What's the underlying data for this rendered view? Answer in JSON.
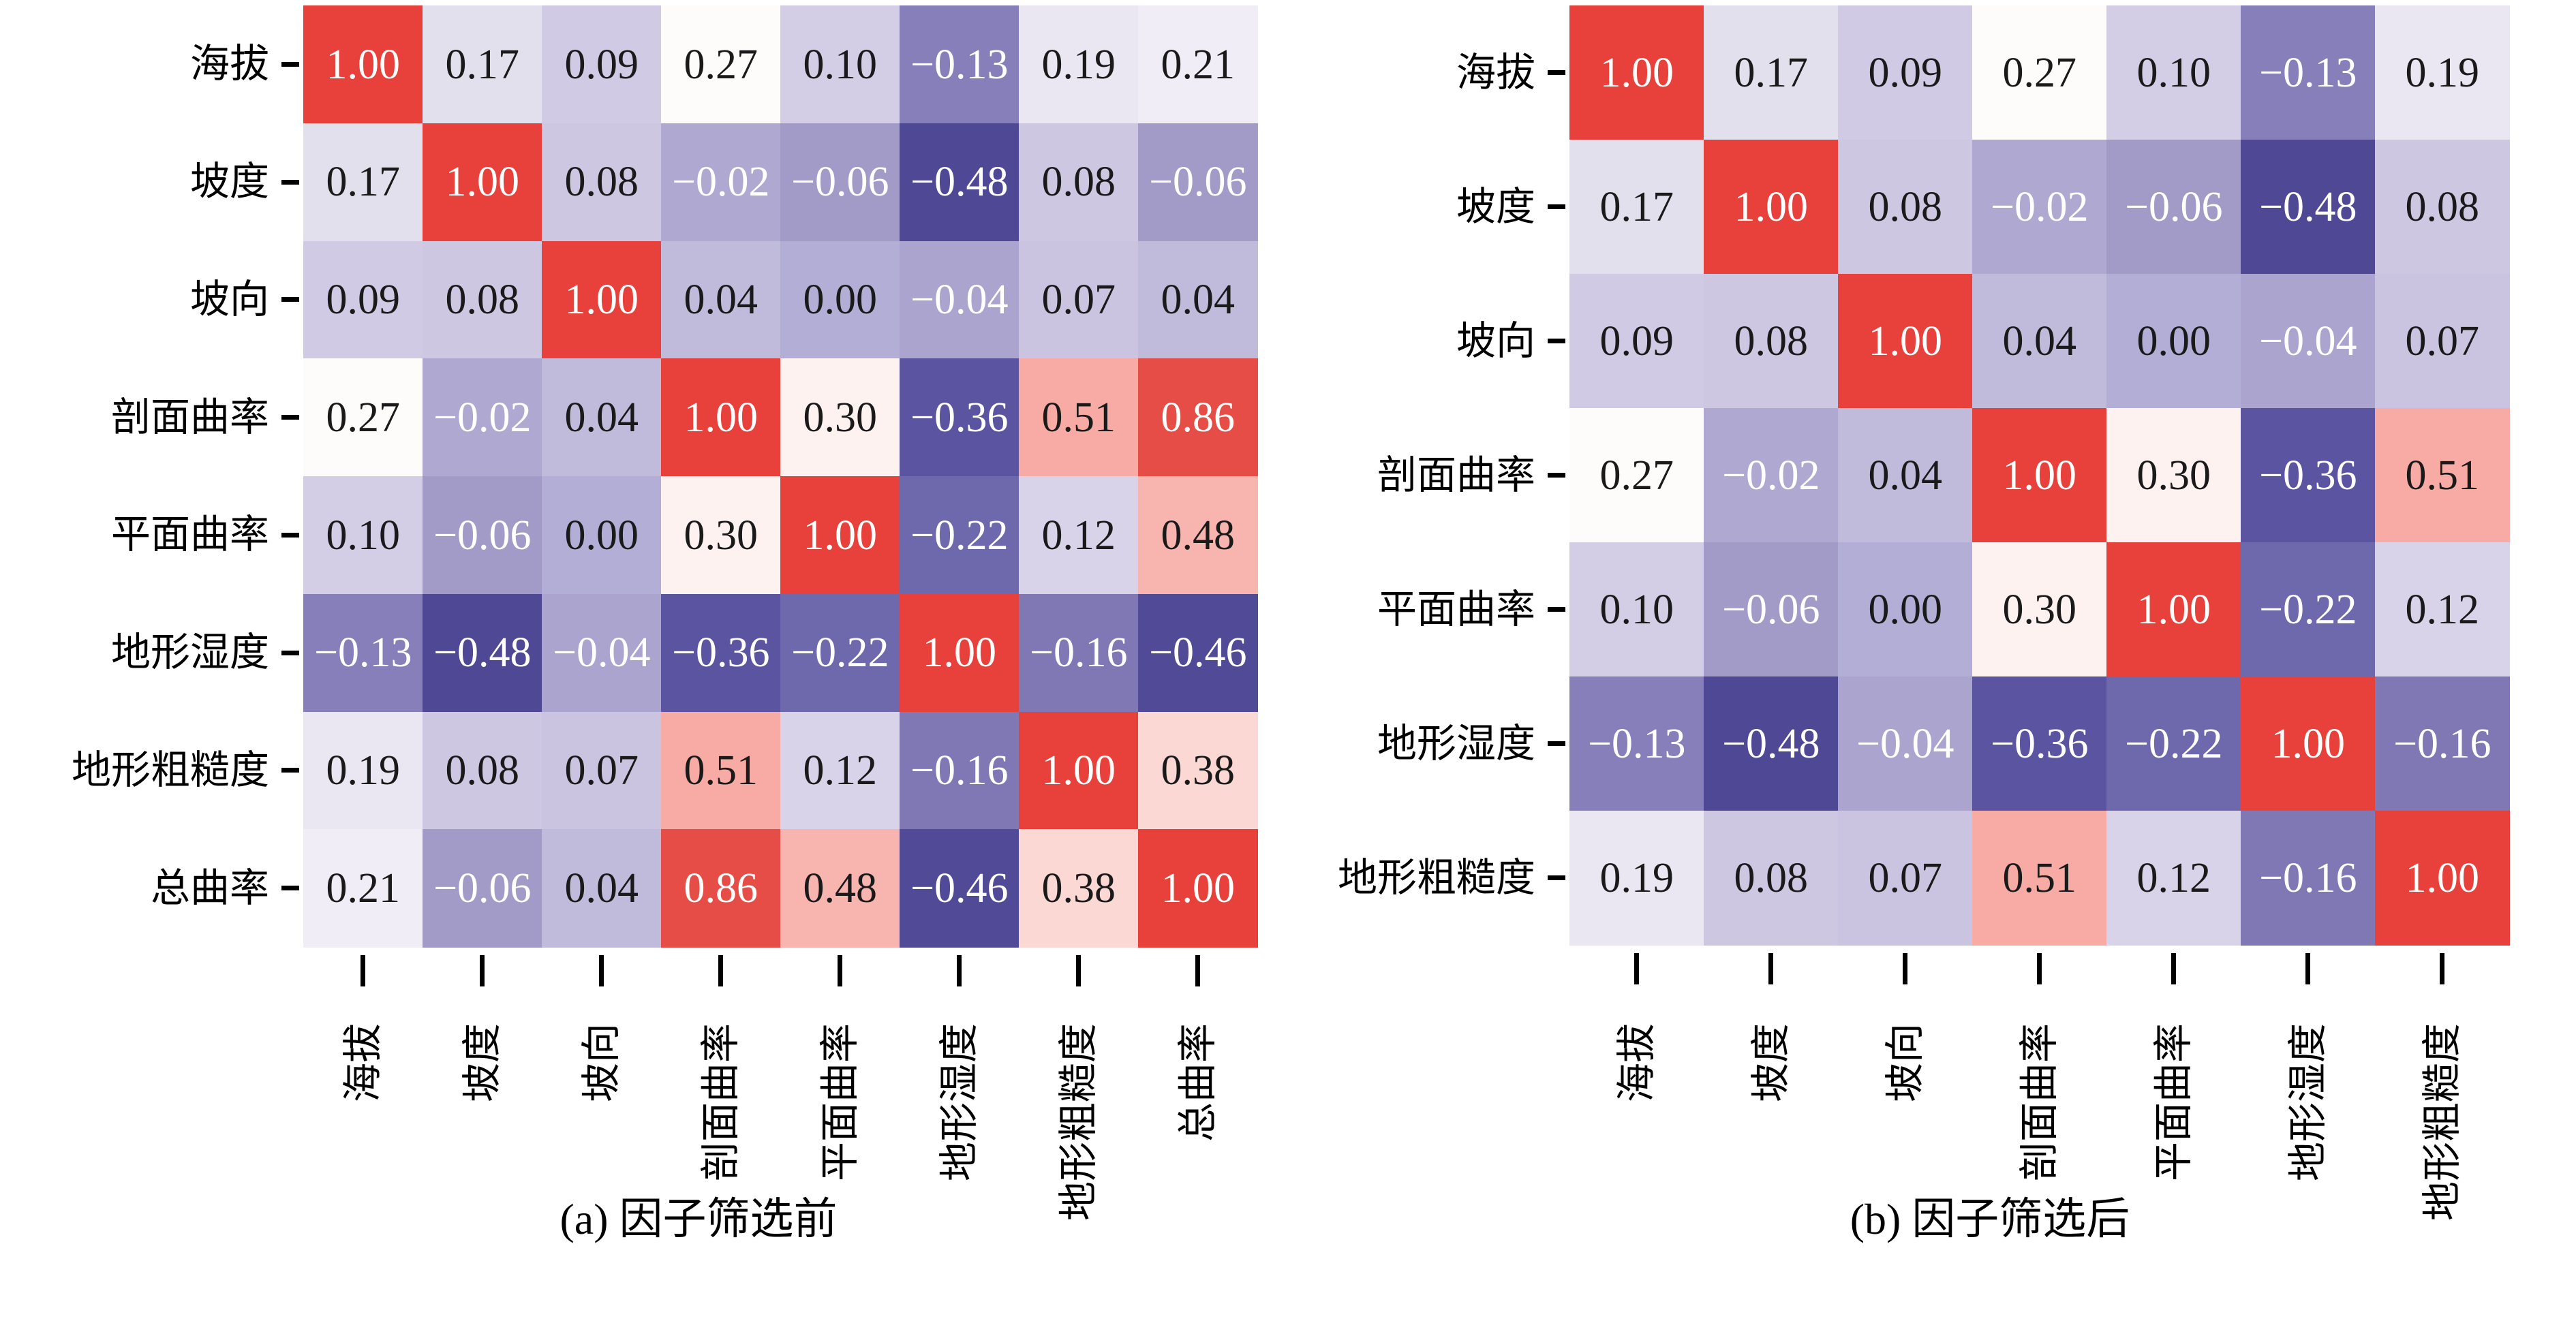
{
  "chart_data": [
    {
      "type": "heatmap",
      "title": "(a) 因子筛选前",
      "categories": [
        "海拔",
        "坡度",
        "坡向",
        "剖面曲率",
        "平面曲率",
        "地形湿度",
        "地形粗糙度",
        "总曲率"
      ],
      "matrix": [
        [
          1.0,
          0.17,
          0.09,
          0.27,
          0.1,
          -0.13,
          0.19,
          0.21
        ],
        [
          0.17,
          1.0,
          0.08,
          -0.02,
          -0.06,
          -0.48,
          0.08,
          -0.06
        ],
        [
          0.09,
          0.08,
          1.0,
          0.04,
          0.0,
          -0.04,
          0.07,
          0.04
        ],
        [
          0.27,
          -0.02,
          0.04,
          1.0,
          0.3,
          -0.36,
          0.51,
          0.86
        ],
        [
          0.1,
          -0.06,
          0.0,
          0.3,
          1.0,
          -0.22,
          0.12,
          0.48
        ],
        [
          -0.13,
          -0.48,
          -0.04,
          -0.36,
          -0.22,
          1.0,
          -0.16,
          -0.46
        ],
        [
          0.19,
          0.08,
          0.07,
          0.51,
          0.12,
          -0.16,
          1.0,
          0.38
        ],
        [
          0.21,
          -0.06,
          0.04,
          0.86,
          0.48,
          -0.46,
          0.38,
          1.0
        ]
      ],
      "value_range": [
        -0.48,
        1.0
      ],
      "grid": false,
      "legend": "none",
      "xlabel": "",
      "ylabel": ""
    },
    {
      "type": "heatmap",
      "title": "(b) 因子筛选后",
      "categories": [
        "海拔",
        "坡度",
        "坡向",
        "剖面曲率",
        "平面曲率",
        "地形湿度",
        "地形粗糙度"
      ],
      "matrix": [
        [
          1.0,
          0.17,
          0.09,
          0.27,
          0.1,
          -0.13,
          0.19
        ],
        [
          0.17,
          1.0,
          0.08,
          -0.02,
          -0.06,
          -0.48,
          0.08
        ],
        [
          0.09,
          0.08,
          1.0,
          0.04,
          0.0,
          -0.04,
          0.07
        ],
        [
          0.27,
          -0.02,
          0.04,
          1.0,
          0.3,
          -0.36,
          0.51
        ],
        [
          0.1,
          -0.06,
          0.0,
          0.3,
          1.0,
          -0.22,
          0.12
        ],
        [
          -0.13,
          -0.48,
          -0.04,
          -0.36,
          -0.22,
          1.0,
          -0.16
        ],
        [
          0.19,
          0.08,
          0.07,
          0.51,
          0.12,
          -0.16,
          1.0
        ]
      ],
      "value_range": [
        -0.48,
        1.0
      ],
      "grid": false,
      "legend": "none",
      "xlabel": "",
      "ylabel": ""
    }
  ],
  "colors": {
    "background": "#ffffff",
    "tick_color": "#000000",
    "label_color": "#000000",
    "cell_text_dark": "#1a1a1a",
    "cell_text_light": "#ffffff",
    "colormap_stops": [
      {
        "v": -0.48,
        "c": "#4f4894"
      },
      {
        "v": -0.36,
        "c": "#5b54a0"
      },
      {
        "v": -0.22,
        "c": "#6e68ac"
      },
      {
        "v": -0.16,
        "c": "#7f78b5"
      },
      {
        "v": -0.13,
        "c": "#867fb9"
      },
      {
        "v": -0.06,
        "c": "#a29bc8"
      },
      {
        "v": -0.04,
        "c": "#aaa4cf"
      },
      {
        "v": 0.0,
        "c": "#b3aed5"
      },
      {
        "v": 0.04,
        "c": "#c0bbdb"
      },
      {
        "v": 0.08,
        "c": "#cdc7e2"
      },
      {
        "v": 0.12,
        "c": "#d8d3e9"
      },
      {
        "v": 0.17,
        "c": "#e3e0ee"
      },
      {
        "v": 0.21,
        "c": "#f0edf6"
      },
      {
        "v": 0.26,
        "c": "#fefefe"
      },
      {
        "v": 0.3,
        "c": "#fdf2f0"
      },
      {
        "v": 0.38,
        "c": "#fcd8d4"
      },
      {
        "v": 0.48,
        "c": "#f8b5af"
      },
      {
        "v": 0.51,
        "c": "#f7aba4"
      },
      {
        "v": 0.86,
        "c": "#e64d46"
      },
      {
        "v": 1.0,
        "c": "#e8413b"
      }
    ]
  }
}
